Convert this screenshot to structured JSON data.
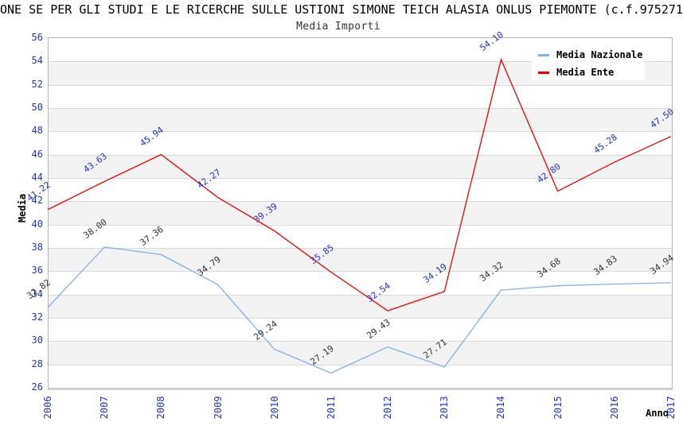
{
  "header": {
    "title_visible": "ONE SE PER GLI STUDI E LE RICERCHE SULLE USTIONI SIMONE TEICH ALASIA ONLUS PIEMONTE (c.f.975271",
    "subtitle": "Media Importi"
  },
  "colors": {
    "axis_text": "#2233cc",
    "nazionale_line": "#7fb3e8",
    "ente_line": "#ee0000",
    "nazionale_point_label": "#333333",
    "ente_point_label": "#2233cc",
    "band_gray": "#f3f3f3",
    "band_white": "#ffffff",
    "gridline": "#d9d9d9"
  },
  "chart_data": {
    "type": "line",
    "title": "Media Importi",
    "xlabel": "Anno",
    "ylabel": "Media",
    "categories": [
      "2006",
      "2007",
      "2008",
      "2009",
      "2010",
      "2011",
      "2012",
      "2013",
      "2014",
      "2015",
      "2016",
      "2017"
    ],
    "series": [
      {
        "name": "Media Nazionale",
        "color": "#7fb3e8",
        "label_color": "#333333",
        "values": [
          32.82,
          38.0,
          37.36,
          34.79,
          29.24,
          27.19,
          29.43,
          27.71,
          34.32,
          34.68,
          34.83,
          34.94
        ]
      },
      {
        "name": "Media Ente",
        "color": "#ee0000",
        "label_color": "#2233cc",
        "values": [
          41.22,
          43.63,
          45.94,
          42.27,
          39.39,
          35.85,
          32.54,
          34.19,
          54.1,
          42.8,
          45.28,
          47.5
        ]
      }
    ],
    "ylim": [
      26,
      56
    ],
    "ytick": 2,
    "y_ticks": [
      56,
      54,
      52,
      50,
      48,
      46,
      44,
      42,
      40,
      38,
      36,
      34,
      32,
      30,
      28,
      26
    ],
    "grid": true,
    "banded_background": true,
    "legend_position": "top-right",
    "point_labels": true
  }
}
